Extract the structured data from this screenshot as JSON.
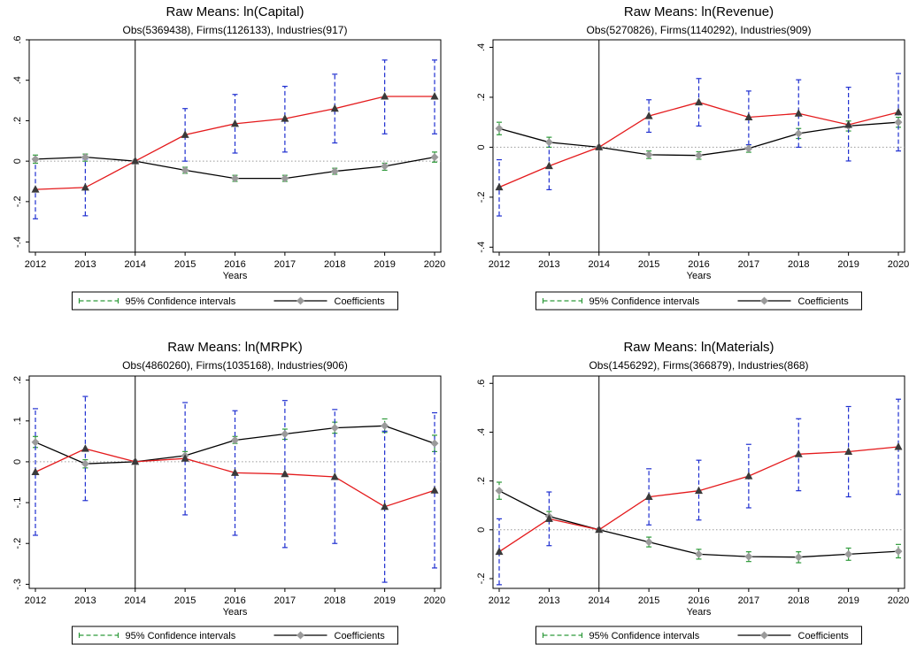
{
  "colors": {
    "ci_green": "#2e9a3a",
    "ci_blue": "#1f2fd0",
    "treated": "#e41a1c",
    "control": "#000000",
    "marker_tri": "#3a3a3a",
    "marker_dia": "#9a9a9a"
  },
  "legend": {
    "ci_label": "95% Confidence intervals",
    "coef_label": "Coefficients"
  },
  "chart_data": [
    {
      "type": "line",
      "title": "Raw Means: ln(Capital)",
      "subtitle": "Obs(5369438), Firms(1126133), Industries(917)",
      "xlabel": "Years",
      "x": [
        2012,
        2013,
        2014,
        2015,
        2016,
        2017,
        2018,
        2019,
        2020
      ],
      "event_year": 2014,
      "ylim": [
        -0.45,
        0.6
      ],
      "yticks": [
        -0.4,
        -0.2,
        0,
        0.2,
        0.4,
        0.6
      ],
      "yticklabels": [
        "-.4",
        "-.2",
        "0",
        ".2",
        ".4",
        ".6"
      ],
      "series": [
        {
          "values": [
            0.01,
            0.02,
            0,
            -0.045,
            -0.085,
            -0.085,
            -0.05,
            -0.025,
            0.02
          ],
          "lo": [
            -0.01,
            0.0,
            0,
            -0.06,
            -0.1,
            -0.1,
            -0.065,
            -0.045,
            -0.005
          ],
          "hi": [
            0.03,
            0.035,
            0,
            -0.03,
            -0.07,
            -0.07,
            -0.035,
            -0.01,
            0.045
          ]
        },
        {
          "values": [
            -0.14,
            -0.13,
            0,
            0.13,
            0.185,
            0.21,
            0.26,
            0.32,
            0.32
          ],
          "lo": [
            -0.285,
            -0.27,
            0,
            0.0,
            0.04,
            0.045,
            0.09,
            0.135,
            0.135
          ],
          "hi": [
            0.005,
            0.01,
            0,
            0.26,
            0.33,
            0.37,
            0.43,
            0.5,
            0.5
          ]
        }
      ]
    },
    {
      "type": "line",
      "title": "Raw Means: ln(Revenue)",
      "subtitle": "Obs(5270826), Firms(1140292), Industries(909)",
      "xlabel": "Years",
      "x": [
        2012,
        2013,
        2014,
        2015,
        2016,
        2017,
        2018,
        2019,
        2020
      ],
      "event_year": 2014,
      "ylim": [
        -0.42,
        0.43
      ],
      "yticks": [
        -0.4,
        -0.2,
        0,
        0.2,
        0.4
      ],
      "yticklabels": [
        "-.4",
        "-.2",
        "0",
        ".2",
        ".4"
      ],
      "series": [
        {
          "values": [
            0.075,
            0.02,
            0,
            -0.03,
            -0.033,
            -0.005,
            0.055,
            0.085,
            0.1
          ],
          "lo": [
            0.05,
            0.0,
            0,
            -0.045,
            -0.048,
            -0.02,
            0.035,
            0.065,
            0.08
          ],
          "hi": [
            0.1,
            0.04,
            0,
            -0.015,
            -0.018,
            0.01,
            0.075,
            0.105,
            0.12
          ]
        },
        {
          "values": [
            -0.16,
            -0.075,
            0,
            0.125,
            0.18,
            0.12,
            0.135,
            0.09,
            0.14
          ],
          "lo": [
            -0.275,
            -0.17,
            0,
            0.06,
            0.085,
            0.01,
            0.0,
            -0.055,
            -0.015
          ],
          "hi": [
            -0.05,
            0.02,
            0,
            0.19,
            0.275,
            0.225,
            0.27,
            0.24,
            0.295
          ]
        }
      ]
    },
    {
      "type": "line",
      "title": "Raw Means: ln(MRPK)",
      "subtitle": "Obs(4860260), Firms(1035168), Industries(906)",
      "xlabel": "Years",
      "x": [
        2012,
        2013,
        2014,
        2015,
        2016,
        2017,
        2018,
        2019,
        2020
      ],
      "event_year": 2014,
      "ylim": [
        -0.31,
        0.21
      ],
      "yticks": [
        -0.3,
        -0.2,
        -0.1,
        0,
        0.1,
        0.2
      ],
      "yticklabels": [
        "-.3",
        "-.2",
        "-.1",
        "0",
        ".1",
        ".2"
      ],
      "series": [
        {
          "values": [
            0.048,
            -0.005,
            0,
            0.015,
            0.053,
            0.068,
            0.083,
            0.088,
            0.045
          ],
          "lo": [
            0.035,
            -0.015,
            0,
            0.005,
            0.045,
            0.055,
            0.07,
            0.072,
            0.025
          ],
          "hi": [
            0.062,
            0.005,
            0,
            0.025,
            0.062,
            0.08,
            0.097,
            0.105,
            0.065
          ]
        },
        {
          "values": [
            -0.025,
            0.032,
            0,
            0.008,
            -0.027,
            -0.03,
            -0.037,
            -0.11,
            -0.07
          ],
          "lo": [
            -0.18,
            -0.095,
            0,
            -0.13,
            -0.18,
            -0.21,
            -0.2,
            -0.295,
            -0.26
          ],
          "hi": [
            0.13,
            0.16,
            0,
            0.145,
            0.125,
            0.15,
            0.128,
            0.075,
            0.12
          ]
        }
      ]
    },
    {
      "type": "line",
      "title": "Raw Means: ln(Materials)",
      "subtitle": "Obs(1456292), Firms(366879), Industries(868)",
      "xlabel": "Years",
      "x": [
        2012,
        2013,
        2014,
        2015,
        2016,
        2017,
        2018,
        2019,
        2020
      ],
      "event_year": 2014,
      "ylim": [
        -0.24,
        0.63
      ],
      "yticks": [
        -0.2,
        0,
        0.2,
        0.4,
        0.6
      ],
      "yticklabels": [
        "-.2",
        "0",
        ".2",
        ".4",
        ".6"
      ],
      "series": [
        {
          "values": [
            0.16,
            0.055,
            0,
            -0.05,
            -0.1,
            -0.11,
            -0.112,
            -0.1,
            -0.088
          ],
          "lo": [
            0.125,
            0.035,
            0,
            -0.07,
            -0.12,
            -0.13,
            -0.135,
            -0.125,
            -0.115
          ],
          "hi": [
            0.195,
            0.075,
            0,
            -0.03,
            -0.08,
            -0.09,
            -0.09,
            -0.075,
            -0.06
          ]
        },
        {
          "values": [
            -0.09,
            0.045,
            0,
            0.135,
            0.16,
            0.22,
            0.31,
            0.32,
            0.34
          ],
          "lo": [
            -0.225,
            -0.065,
            0,
            0.02,
            0.04,
            0.09,
            0.16,
            0.135,
            0.145
          ],
          "hi": [
            0.045,
            0.155,
            0,
            0.25,
            0.285,
            0.35,
            0.455,
            0.505,
            0.535
          ]
        }
      ]
    }
  ]
}
